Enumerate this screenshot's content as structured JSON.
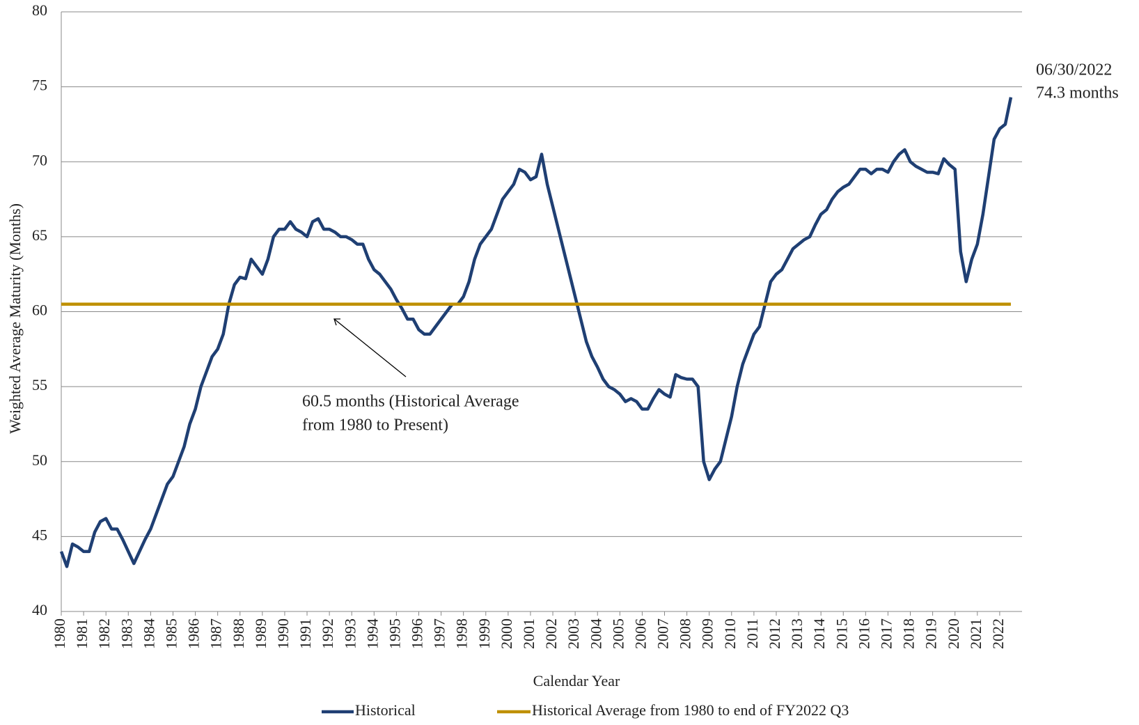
{
  "chart_data": {
    "type": "line",
    "xlabel": "Calendar Year",
    "ylabel": "Weighted Average Maturity (Months)",
    "annotations": [
      "06/30/2022",
      "74.3 months",
      "60.5 months (Historical Average",
      "from 1980 to Present)"
    ],
    "xlim": [
      1980,
      2023
    ],
    "ylim": [
      40,
      80
    ],
    "yticks": [
      40,
      45,
      50,
      55,
      60,
      65,
      70,
      75,
      80
    ],
    "xticks": [
      1980,
      1981,
      1982,
      1983,
      1984,
      1985,
      1986,
      1987,
      1988,
      1989,
      1990,
      1991,
      1992,
      1993,
      1994,
      1995,
      1996,
      1997,
      1998,
      1999,
      2000,
      2001,
      2002,
      2003,
      2004,
      2005,
      2006,
      2007,
      2008,
      2009,
      2010,
      2011,
      2012,
      2013,
      2014,
      2015,
      2016,
      2017,
      2018,
      2019,
      2020,
      2021,
      2022
    ],
    "grid": true,
    "series": [
      {
        "name": "Historical",
        "color": "#1f3f73",
        "x": [
          1980,
          1980.25,
          1980.5,
          1980.75,
          1981,
          1981.25,
          1981.5,
          1981.75,
          1982,
          1982.25,
          1982.5,
          1982.75,
          1983,
          1983.25,
          1983.5,
          1983.75,
          1984,
          1984.25,
          1984.5,
          1984.75,
          1985,
          1985.25,
          1985.5,
          1985.75,
          1986,
          1986.25,
          1986.5,
          1986.75,
          1987,
          1987.25,
          1987.5,
          1987.75,
          1988,
          1988.25,
          1988.5,
          1988.75,
          1989,
          1989.25,
          1989.5,
          1989.75,
          1990,
          1990.25,
          1990.5,
          1990.75,
          1991,
          1991.25,
          1991.5,
          1991.75,
          1992,
          1992.25,
          1992.5,
          1992.75,
          1993,
          1993.25,
          1993.5,
          1993.75,
          1994,
          1994.25,
          1994.5,
          1994.75,
          1995,
          1995.25,
          1995.5,
          1995.75,
          1996,
          1996.25,
          1996.5,
          1996.75,
          1997,
          1997.25,
          1997.5,
          1997.75,
          1998,
          1998.25,
          1998.5,
          1998.75,
          1999,
          1999.25,
          1999.5,
          1999.75,
          2000,
          2000.25,
          2000.5,
          2000.75,
          2001,
          2001.25,
          2001.5,
          2001.75,
          2002,
          2002.25,
          2002.5,
          2002.75,
          2003,
          2003.25,
          2003.5,
          2003.75,
          2004,
          2004.25,
          2004.5,
          2004.75,
          2005,
          2005.25,
          2005.5,
          2005.75,
          2006,
          2006.25,
          2006.5,
          2006.75,
          2007,
          2007.25,
          2007.5,
          2007.75,
          2008,
          2008.25,
          2008.5,
          2008.75,
          2009,
          2009.25,
          2009.5,
          2009.75,
          2010,
          2010.25,
          2010.5,
          2010.75,
          2011,
          2011.25,
          2011.5,
          2011.75,
          2012,
          2012.25,
          2012.5,
          2012.75,
          2013,
          2013.25,
          2013.5,
          2013.75,
          2014,
          2014.25,
          2014.5,
          2014.75,
          2015,
          2015.25,
          2015.5,
          2015.75,
          2016,
          2016.25,
          2016.5,
          2016.75,
          2017,
          2017.25,
          2017.5,
          2017.75,
          2018,
          2018.25,
          2018.5,
          2018.75,
          2019,
          2019.25,
          2019.5,
          2019.75,
          2020,
          2020.25,
          2020.5,
          2020.75,
          2021,
          2021.25,
          2021.5,
          2021.75,
          2022,
          2022.25,
          2022.5
        ],
        "values": [
          44,
          43,
          44.5,
          44.3,
          44,
          44,
          45.3,
          46,
          46.2,
          45.5,
          45.5,
          44.8,
          44,
          43.2,
          44,
          44.8,
          45.5,
          46.5,
          47.5,
          48.5,
          49,
          50,
          51,
          52.5,
          53.5,
          55,
          56,
          57,
          57.5,
          58.5,
          60.5,
          61.8,
          62.3,
          62.2,
          63.5,
          63,
          62.5,
          63.5,
          65,
          65.5,
          65.5,
          66,
          65.5,
          65.3,
          65,
          66,
          66.2,
          65.5,
          65.5,
          65.3,
          65,
          65,
          64.8,
          64.5,
          64.5,
          63.5,
          62.8,
          62.5,
          62,
          61.5,
          60.8,
          60.2,
          59.5,
          59.5,
          58.8,
          58.5,
          58.5,
          59,
          59.5,
          60,
          60.5,
          60.5,
          61,
          62,
          63.5,
          64.5,
          65,
          65.5,
          66.5,
          67.5,
          68,
          68.5,
          69.5,
          69.3,
          68.8,
          69,
          70.5,
          68.5,
          67,
          65.5,
          64,
          62.5,
          61,
          59.5,
          58,
          57,
          56.3,
          55.5,
          55,
          54.8,
          54.5,
          54,
          54.2,
          54,
          53.5,
          53.5,
          54.2,
          54.8,
          54.5,
          54.3,
          55.8,
          55.6,
          55.5,
          55.5,
          55,
          50,
          48.8,
          49.5,
          50,
          51.5,
          53,
          55,
          56.5,
          57.5,
          58.5,
          59,
          60.5,
          62,
          62.5,
          62.8,
          63.5,
          64.2,
          64.5,
          64.8,
          65,
          65.8,
          66.5,
          66.8,
          67.5,
          68,
          68.3,
          68.5,
          69,
          69.5,
          69.5,
          69.2,
          69.5,
          69.5,
          69.3,
          70,
          70.5,
          70.8,
          70,
          69.7,
          69.5,
          69.3,
          69.3,
          69.2,
          70.2,
          69.8,
          69.5,
          64,
          62,
          63.5,
          64.5,
          66.5,
          69,
          71.5,
          72.2,
          72.5,
          74.3
        ]
      },
      {
        "name": "Historical Average from 1980 to end of FY2022 Q3",
        "color": "#bf9000",
        "x": [
          1980,
          2022.5
        ],
        "values": [
          60.5,
          60.5
        ]
      }
    ]
  }
}
